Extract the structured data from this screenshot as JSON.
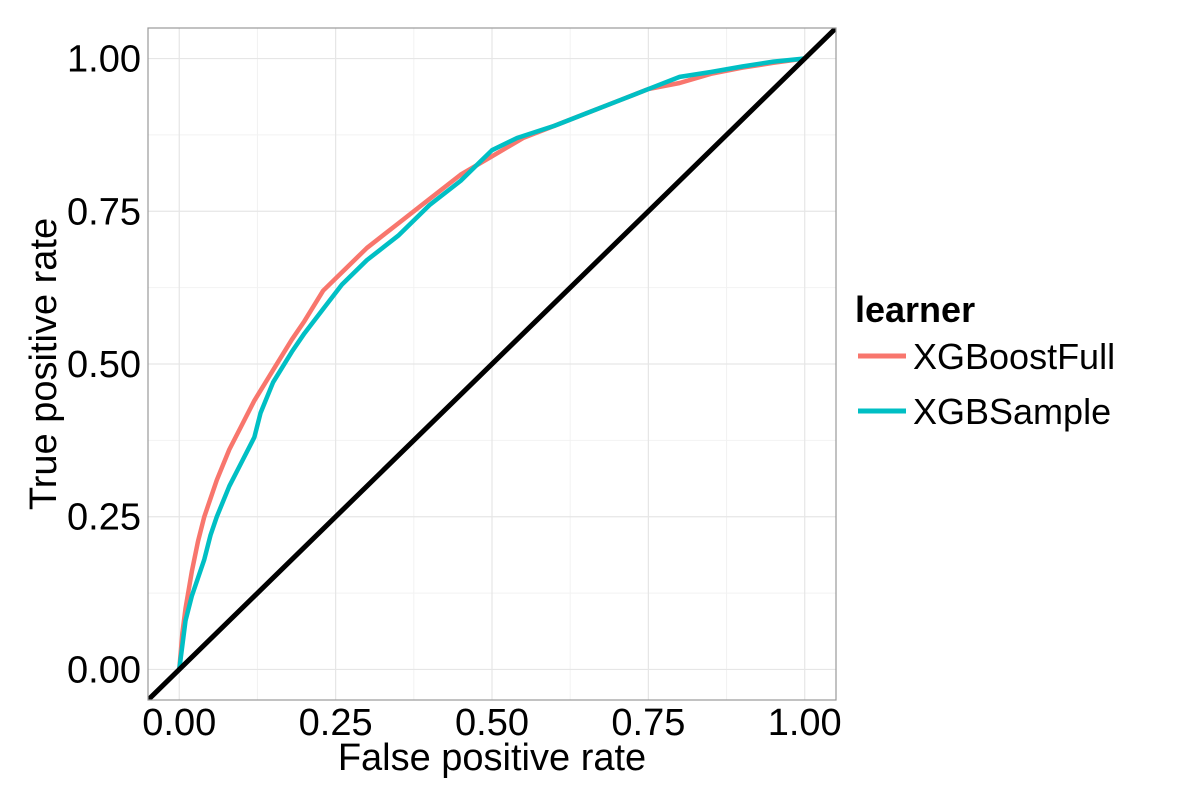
{
  "chart_data": {
    "type": "line",
    "xlabel": "False positive rate",
    "ylabel": "True positive rate",
    "xlim": [
      -0.05,
      1.05
    ],
    "ylim": [
      -0.05,
      1.05
    ],
    "x_ticks": [
      "0.00",
      "0.25",
      "0.50",
      "0.75",
      "1.00"
    ],
    "y_ticks": [
      "0.00",
      "0.25",
      "0.50",
      "0.75",
      "1.00"
    ],
    "grid": true,
    "legend": {
      "title": "learner",
      "position": "right"
    },
    "series": [
      {
        "name": "XGBoostFull",
        "color": "#F8766D",
        "points": [
          [
            0,
            0
          ],
          [
            0.005,
            0.06
          ],
          [
            0.01,
            0.1
          ],
          [
            0.02,
            0.16
          ],
          [
            0.03,
            0.21
          ],
          [
            0.04,
            0.25
          ],
          [
            0.05,
            0.28
          ],
          [
            0.06,
            0.31
          ],
          [
            0.08,
            0.36
          ],
          [
            0.1,
            0.4
          ],
          [
            0.12,
            0.44
          ],
          [
            0.15,
            0.49
          ],
          [
            0.18,
            0.54
          ],
          [
            0.2,
            0.57
          ],
          [
            0.23,
            0.62
          ],
          [
            0.26,
            0.65
          ],
          [
            0.3,
            0.69
          ],
          [
            0.35,
            0.73
          ],
          [
            0.4,
            0.77
          ],
          [
            0.45,
            0.81
          ],
          [
            0.5,
            0.84
          ],
          [
            0.55,
            0.87
          ],
          [
            0.6,
            0.89
          ],
          [
            0.65,
            0.91
          ],
          [
            0.7,
            0.93
          ],
          [
            0.75,
            0.95
          ],
          [
            0.8,
            0.96
          ],
          [
            0.85,
            0.975
          ],
          [
            0.9,
            0.985
          ],
          [
            0.95,
            0.993
          ],
          [
            1.0,
            1.0
          ]
        ]
      },
      {
        "name": "XGBSample",
        "color": "#00BFC4",
        "points": [
          [
            0,
            0
          ],
          [
            0.01,
            0.08
          ],
          [
            0.02,
            0.12
          ],
          [
            0.03,
            0.15
          ],
          [
            0.04,
            0.18
          ],
          [
            0.05,
            0.22
          ],
          [
            0.06,
            0.25
          ],
          [
            0.08,
            0.3
          ],
          [
            0.1,
            0.34
          ],
          [
            0.12,
            0.38
          ],
          [
            0.13,
            0.42
          ],
          [
            0.15,
            0.47
          ],
          [
            0.18,
            0.52
          ],
          [
            0.2,
            0.55
          ],
          [
            0.23,
            0.59
          ],
          [
            0.26,
            0.63
          ],
          [
            0.3,
            0.67
          ],
          [
            0.35,
            0.71
          ],
          [
            0.38,
            0.74
          ],
          [
            0.4,
            0.76
          ],
          [
            0.45,
            0.8
          ],
          [
            0.48,
            0.83
          ],
          [
            0.5,
            0.85
          ],
          [
            0.54,
            0.87
          ],
          [
            0.6,
            0.89
          ],
          [
            0.65,
            0.91
          ],
          [
            0.7,
            0.93
          ],
          [
            0.75,
            0.95
          ],
          [
            0.8,
            0.97
          ],
          [
            0.85,
            0.978
          ],
          [
            0.9,
            0.987
          ],
          [
            0.95,
            0.995
          ],
          [
            1.0,
            1.0
          ]
        ]
      },
      {
        "name": "",
        "color": "#000000",
        "points": [
          [
            -0.05,
            -0.05
          ],
          [
            1.05,
            1.05
          ]
        ]
      }
    ]
  }
}
